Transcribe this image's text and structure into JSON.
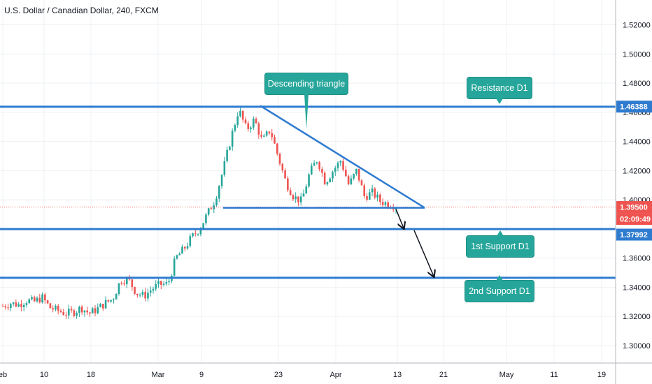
{
  "chart_data": {
    "type": "candlestick",
    "title": "U.S. Dollar / Canadian Dollar, 240, FXCM",
    "y_ticks": [
      "1.52000",
      "1.50000",
      "1.48000",
      "1.46000",
      "1.44000",
      "1.42000",
      "1.40000",
      "1.36000",
      "1.34000",
      "1.32000",
      "1.30000"
    ],
    "y_tick_values": [
      1.52,
      1.5,
      1.48,
      1.46,
      1.44,
      1.42,
      1.4,
      1.36,
      1.34,
      1.32,
      1.3
    ],
    "ylim": [
      1.288,
      1.537
    ],
    "x_ticks": [
      "eb",
      "10",
      "18",
      "Mar",
      "9",
      "23",
      "Apr",
      "13",
      "21",
      "May",
      "11",
      "19"
    ],
    "grid": true,
    "price_labels": {
      "resistance": {
        "value": 1.46388,
        "text": "1.46388"
      },
      "last_price": {
        "value": 1.395,
        "text": "1.39500"
      },
      "countdown": {
        "text": "02:09:49"
      },
      "support": {
        "value": 1.37992,
        "text": "1.37992"
      }
    },
    "levels": [
      {
        "name": "Resistance D1",
        "value": 1.4638
      },
      {
        "name": "1st Support D1",
        "value": 1.3799
      },
      {
        "name": "2nd Support D1",
        "value": 1.3465
      }
    ],
    "triangle_base": 1.3945,
    "annotations": {
      "descending_triangle": "Descending triangle",
      "resistance_label": "Resistance D1",
      "support1_label": "1st Support D1",
      "support2_label": "2nd Support D1"
    },
    "price_path": [
      1.327,
      1.329,
      1.328,
      1.331,
      1.33,
      1.333,
      1.326,
      1.324,
      1.322,
      1.323,
      1.326,
      1.322,
      1.325,
      1.329,
      1.332,
      1.345,
      1.345,
      1.336,
      1.334,
      1.339,
      1.342,
      1.342,
      1.36,
      1.366,
      1.374,
      1.38,
      1.39,
      1.4,
      1.42,
      1.442,
      1.462,
      1.448,
      1.455,
      1.44,
      1.448,
      1.43,
      1.412,
      1.402,
      1.399,
      1.418,
      1.428,
      1.412,
      1.42,
      1.427,
      1.41,
      1.42,
      1.402,
      1.405,
      1.399,
      1.397,
      1.396
    ],
    "colors": {
      "up": "#26a69a",
      "down": "#ef5350",
      "level": "#2e7bcf",
      "callout": "#26a69a"
    }
  }
}
